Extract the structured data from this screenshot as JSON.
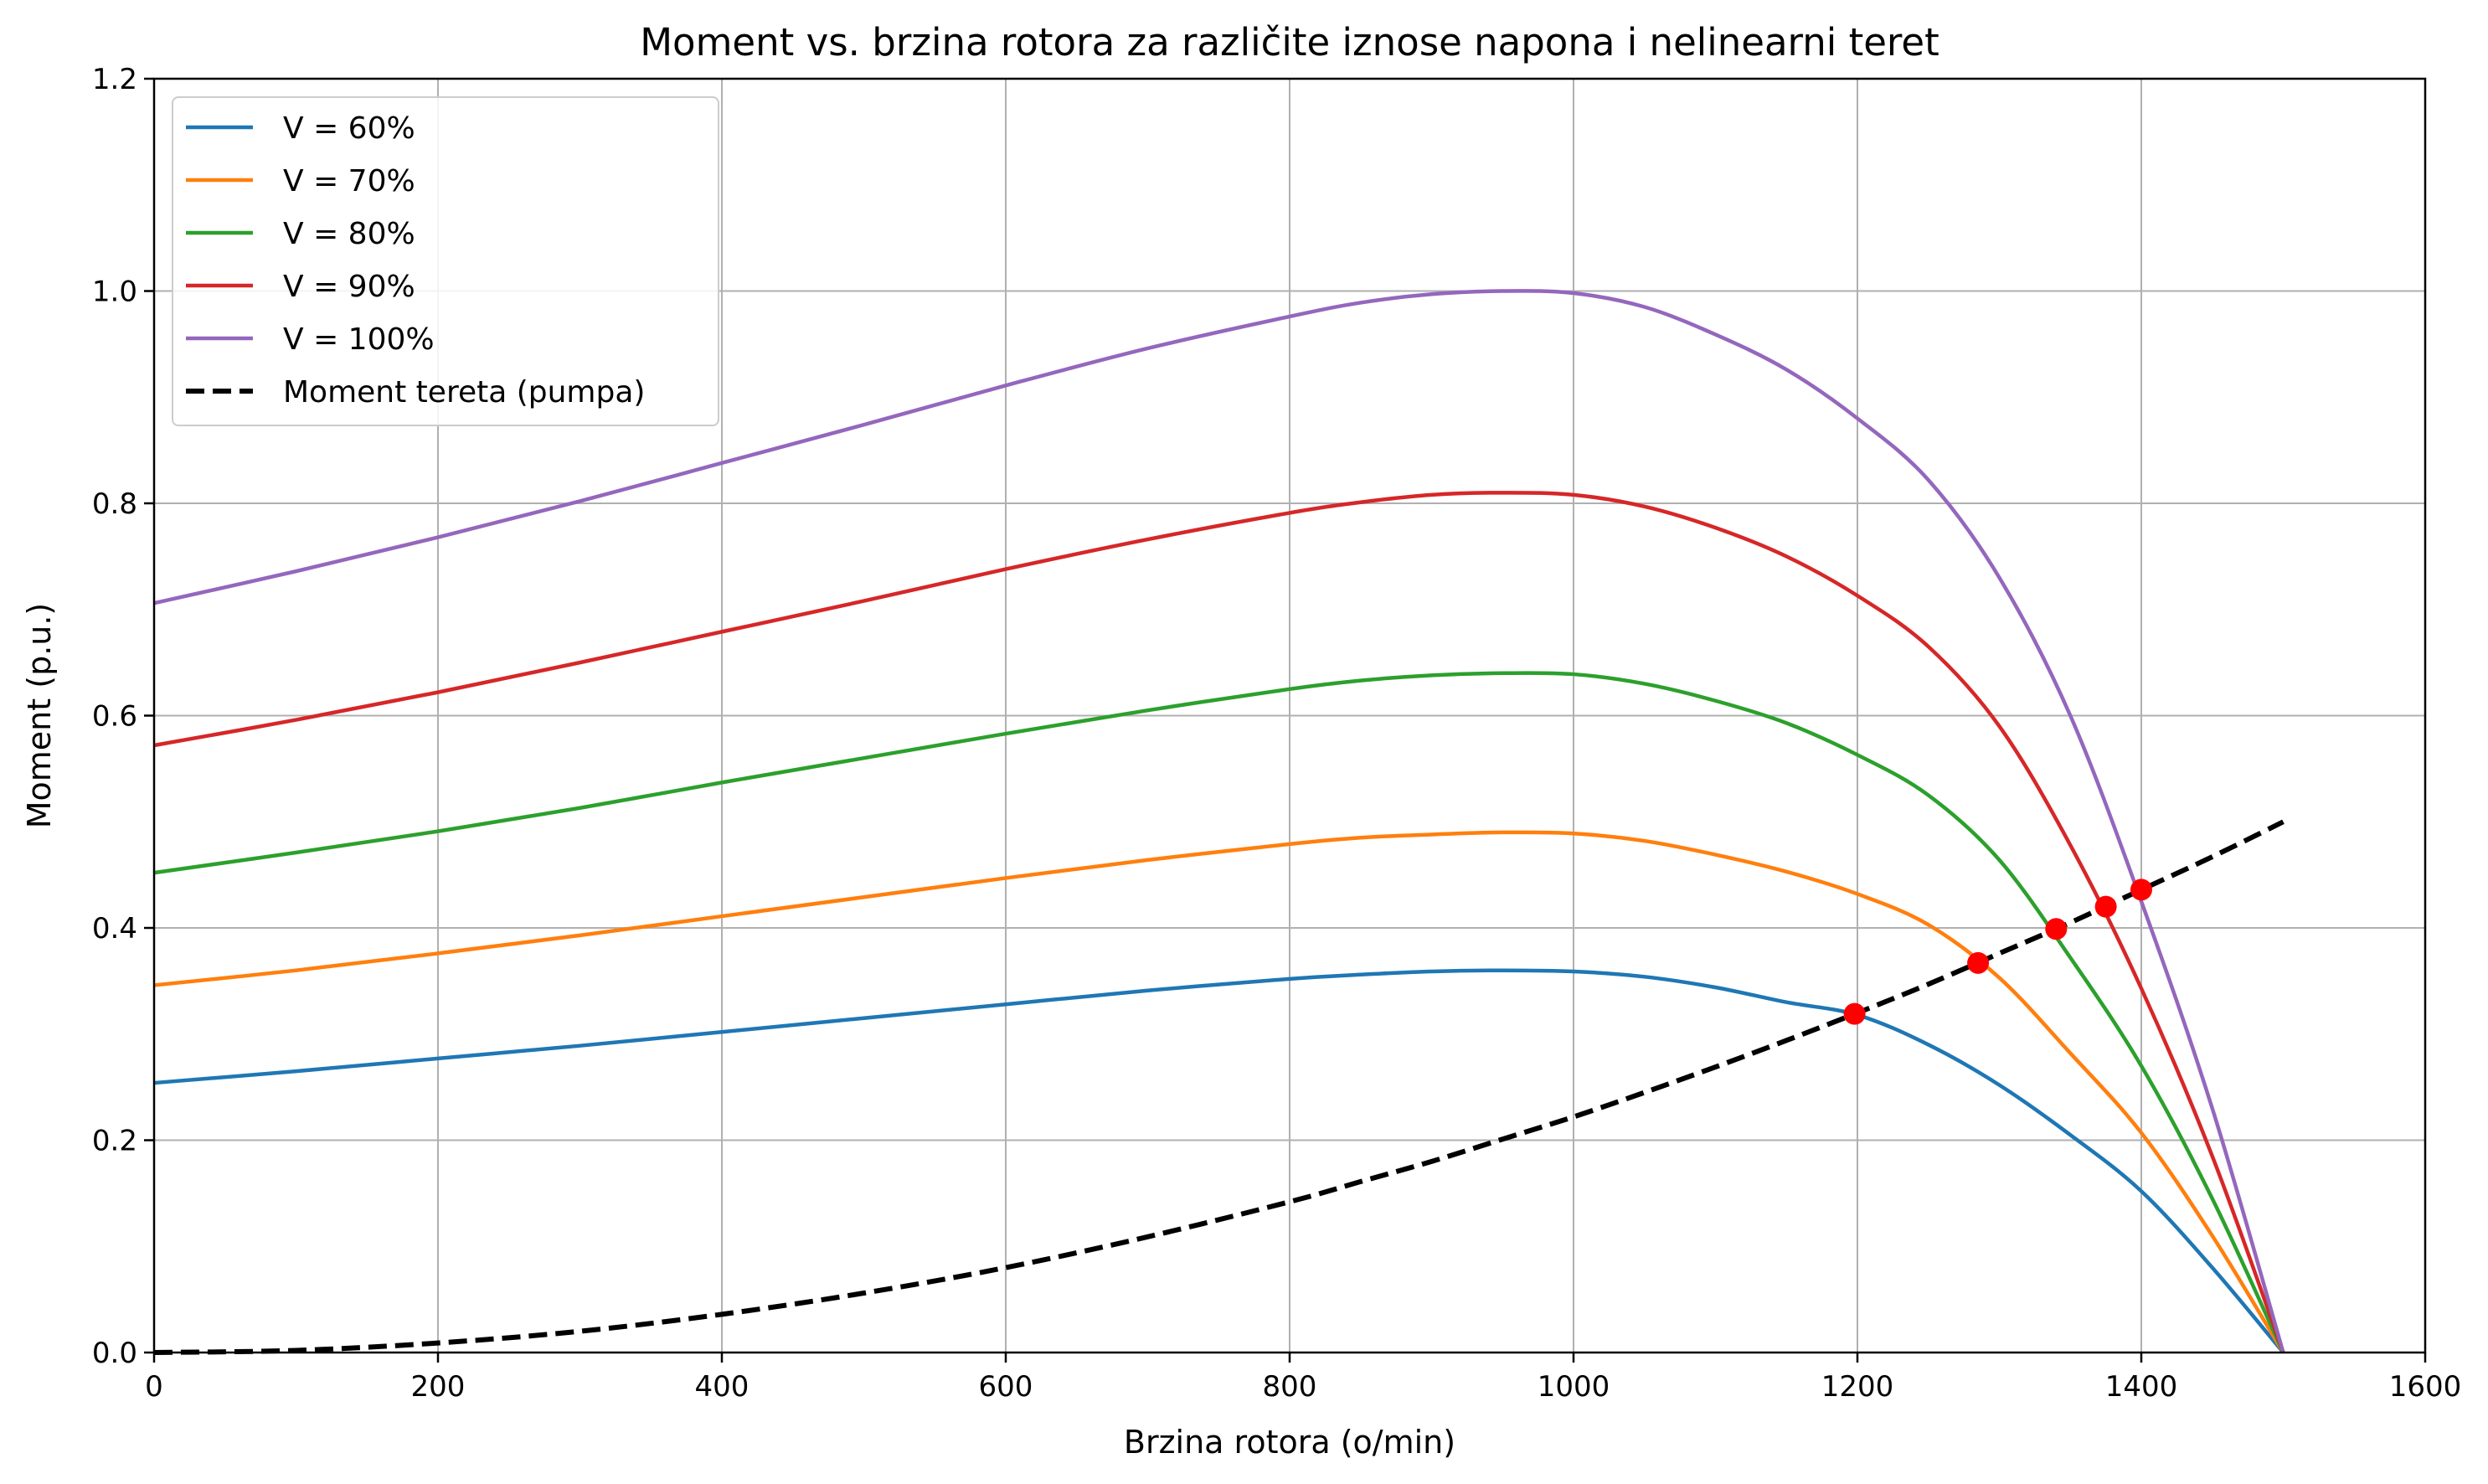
{
  "chart_data": {
    "type": "line",
    "title": "Moment vs. brzina rotora za različite iznose napona i nelinearni teret",
    "xlabel": "Brzina rotora (o/min)",
    "ylabel": "Moment (p.u.)",
    "xlim": [
      0,
      1600
    ],
    "ylim": [
      0,
      1.2
    ],
    "xticks": [
      "0",
      "200",
      "400",
      "600",
      "800",
      "1000",
      "1200",
      "1400",
      "1600"
    ],
    "yticks": [
      "0.0",
      "0.2",
      "0.4",
      "0.6",
      "0.8",
      "1.0",
      "1.2"
    ],
    "grid": true,
    "legend_position": "top-left",
    "x": [
      0,
      100,
      200,
      300,
      400,
      500,
      600,
      700,
      800,
      850,
      900,
      950,
      1000,
      1050,
      1100,
      1150,
      1200,
      1250,
      1300,
      1350,
      1400,
      1450,
      1500
    ],
    "series": [
      {
        "name": "V = 60%",
        "color": "#1f77b4",
        "style": "solid",
        "values": [
          0.254,
          0.265,
          0.277,
          0.289,
          0.302,
          0.315,
          0.328,
          0.341,
          0.352,
          0.356,
          0.359,
          0.36,
          0.359,
          0.354,
          0.344,
          0.33,
          0.318,
          0.29,
          0.252,
          0.205,
          0.152,
          0.08,
          0.0
        ]
      },
      {
        "name": "V = 70%",
        "color": "#ff7f0e",
        "style": "solid",
        "values": [
          0.346,
          0.36,
          0.376,
          0.393,
          0.411,
          0.429,
          0.447,
          0.464,
          0.479,
          0.485,
          0.488,
          0.49,
          0.489,
          0.482,
          0.469,
          0.453,
          0.432,
          0.403,
          0.353,
          0.282,
          0.207,
          0.11,
          0.0
        ]
      },
      {
        "name": "V = 80%",
        "color": "#2ca02c",
        "style": "solid",
        "values": [
          0.452,
          0.471,
          0.491,
          0.513,
          0.537,
          0.56,
          0.583,
          0.605,
          0.625,
          0.633,
          0.638,
          0.64,
          0.639,
          0.63,
          0.614,
          0.593,
          0.563,
          0.525,
          0.464,
          0.372,
          0.27,
          0.145,
          0.0
        ]
      },
      {
        "name": "V = 90%",
        "color": "#d62728",
        "style": "solid",
        "values": [
          0.572,
          0.596,
          0.622,
          0.65,
          0.679,
          0.708,
          0.738,
          0.766,
          0.791,
          0.801,
          0.808,
          0.81,
          0.808,
          0.797,
          0.777,
          0.75,
          0.713,
          0.665,
          0.59,
          0.478,
          0.343,
          0.185,
          0.0
        ]
      },
      {
        "name": "V = 100%",
        "color": "#9467bd",
        "style": "solid",
        "values": [
          0.706,
          0.736,
          0.768,
          0.802,
          0.838,
          0.874,
          0.911,
          0.946,
          0.976,
          0.989,
          0.997,
          1.0,
          0.998,
          0.985,
          0.959,
          0.926,
          0.88,
          0.822,
          0.73,
          0.6,
          0.425,
          0.23,
          0.0
        ]
      },
      {
        "name": "Moment tereta (pumpa)",
        "color": "#000000",
        "style": "dashed",
        "values": [
          0.0,
          0.002,
          0.009,
          0.02,
          0.036,
          0.056,
          0.08,
          0.109,
          0.142,
          0.161,
          0.18,
          0.201,
          0.222,
          0.245,
          0.269,
          0.294,
          0.32,
          0.347,
          0.376,
          0.405,
          0.436,
          0.467,
          0.5
        ]
      }
    ],
    "intersections": [
      {
        "x": 1198,
        "y": 0.319
      },
      {
        "x": 1285,
        "y": 0.367
      },
      {
        "x": 1340,
        "y": 0.399
      },
      {
        "x": 1375,
        "y": 0.42
      },
      {
        "x": 1400,
        "y": 0.436
      }
    ],
    "intersection_color": "#ff0000"
  }
}
